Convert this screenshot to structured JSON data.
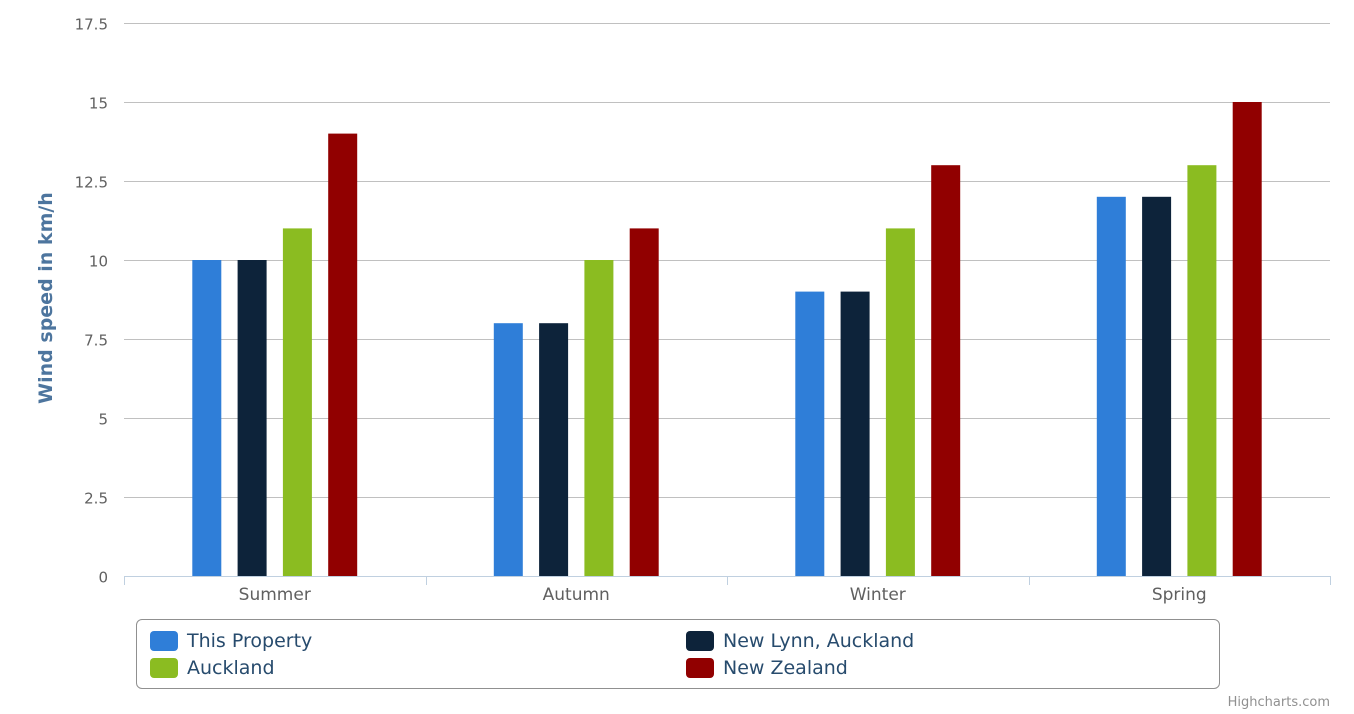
{
  "chart_data": {
    "type": "bar",
    "title": "",
    "xlabel": "",
    "ylabel": "Wind speed in km/h",
    "ylim": [
      0,
      17.5
    ],
    "yticks": [
      "0",
      "2.5",
      "5",
      "7.5",
      "10",
      "12.5",
      "15",
      "17.5"
    ],
    "grid": true,
    "legend_position": "bottom",
    "categories": [
      "Summer",
      "Autumn",
      "Winter",
      "Spring"
    ],
    "series": [
      {
        "name": "This Property",
        "color": "#2f7ed8",
        "values": [
          10,
          8,
          9,
          12
        ]
      },
      {
        "name": "New Lynn, Auckland",
        "color": "#0d233a",
        "values": [
          10,
          8,
          9,
          12
        ]
      },
      {
        "name": "Auckland",
        "color": "#8bbc21",
        "values": [
          11,
          10,
          11,
          13
        ]
      },
      {
        "name": "New Zealand",
        "color": "#910000",
        "values": [
          14,
          11,
          13,
          15
        ]
      }
    ]
  },
  "credit": "Highcharts.com",
  "colors": {
    "axis_title": "#4d759e",
    "tick_text": "#606060",
    "grid": "#c0c0c0",
    "axis_line": "#c0d0e0"
  }
}
